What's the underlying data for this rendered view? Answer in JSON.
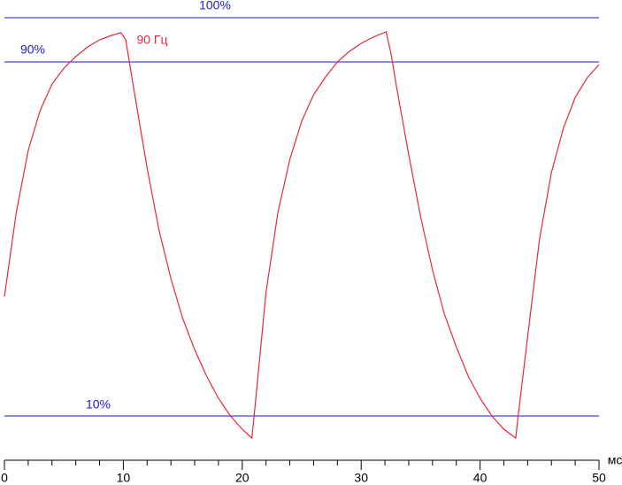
{
  "chart_data": {
    "type": "line",
    "annotation": "90 Гц",
    "xlabel": "мс",
    "x": [
      0,
      1,
      2,
      3,
      4,
      5,
      6,
      7,
      8,
      9,
      9.8,
      10.2,
      11,
      12,
      13,
      14,
      15,
      16,
      17,
      18,
      19,
      20,
      20.8,
      21,
      22,
      23,
      24,
      25,
      26,
      27,
      28,
      29,
      30,
      31,
      32.1,
      32.5,
      33,
      34,
      35,
      36,
      37,
      38,
      39,
      40,
      41,
      42,
      43,
      43.2,
      44,
      45,
      46,
      47,
      48,
      49,
      50
    ],
    "series": [
      {
        "name": "90 Гц",
        "color": "#e8283c",
        "values": [
          37,
          56,
          70,
          79,
          85,
          88.6,
          91.2,
          93.4,
          95,
          96,
          96.6,
          95,
          82,
          66,
          52,
          41,
          32,
          25,
          19,
          14,
          10,
          7,
          5,
          10,
          38,
          56,
          68,
          76.6,
          82.6,
          86.6,
          90,
          92.4,
          94.2,
          95.6,
          96.8,
          92,
          84,
          69,
          55,
          43,
          33,
          25.6,
          19,
          14,
          10,
          7,
          5,
          10,
          28,
          50,
          65,
          75,
          82,
          86.4,
          89.4
        ]
      }
    ],
    "xlim": [
      0,
      50
    ],
    "xticks": [
      0,
      10,
      20,
      30,
      40,
      50
    ],
    "xminorticks": [
      2,
      4,
      6,
      8,
      12,
      14,
      16,
      18,
      22,
      24,
      26,
      28,
      32,
      34,
      36,
      38,
      42,
      44,
      46,
      48
    ],
    "ylim": [
      0,
      104
    ],
    "reference_lines": [
      {
        "value": 100,
        "label": "100%"
      },
      {
        "value": 90,
        "label": "90%"
      },
      {
        "value": 10,
        "label": "10%"
      }
    ],
    "reference_color": "#1a1acd",
    "axis_color": "#000000"
  }
}
